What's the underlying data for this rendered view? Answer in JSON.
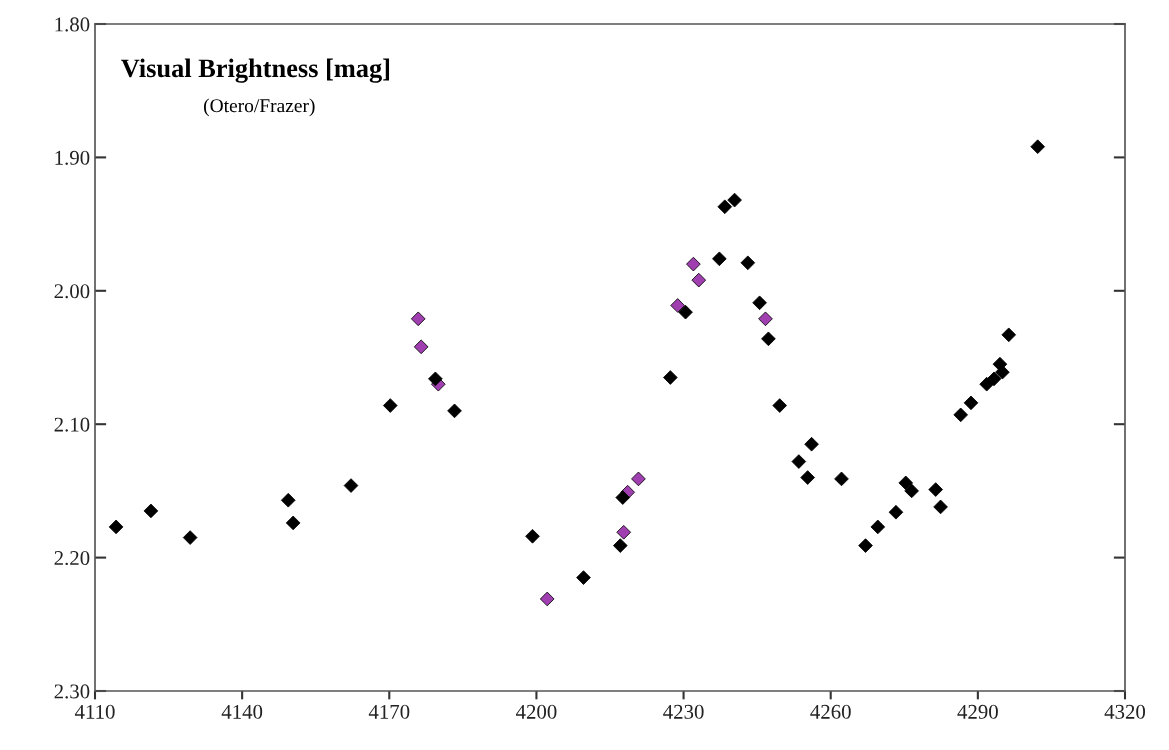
{
  "chart_data": {
    "type": "scatter",
    "title": "Visual Brightness [mag]",
    "subtitle": "(Otero/Frazer)",
    "marker": "diamond",
    "grid": false,
    "legend": false,
    "xlim": [
      4110,
      4320
    ],
    "xticks": [
      4110,
      4140,
      4170,
      4200,
      4230,
      4260,
      4290,
      4320
    ],
    "ylim": [
      2.3,
      1.8
    ],
    "yticks": [
      {
        "value": 1.8,
        "label": "1.80"
      },
      {
        "value": 1.9,
        "label": "1.90"
      },
      {
        "value": 2.0,
        "label": "2.00"
      },
      {
        "value": 2.1,
        "label": "2.10"
      },
      {
        "value": 2.2,
        "label": "2.20"
      },
      {
        "value": 2.3,
        "label": "2.30"
      }
    ],
    "series": [
      {
        "color": "#000000",
        "x": [
          4114.3,
          4121.4,
          4129.4,
          4149.4,
          4150.4,
          4162.2,
          4170.2,
          4179.4,
          4183.3,
          4199.2,
          4209.6,
          4217.1,
          4217.6,
          4227.3,
          4230.4,
          4237.3,
          4238.4,
          4240.4,
          4243.1,
          4245.5,
          4247.3,
          4249.6,
          4253.5,
          4255.3,
          4256.1,
          4262.2,
          4267.1,
          4269.6,
          4273.3,
          4275.3,
          4276.5,
          4281.4,
          4282.4,
          4286.5,
          4288.6,
          4291.8,
          4293.3,
          4295.0,
          4294.5,
          4296.3,
          4302.2
        ],
        "values": [
          2.177,
          2.165,
          2.185,
          2.157,
          2.174,
          2.146,
          2.086,
          2.066,
          2.09,
          2.184,
          2.215,
          2.191,
          2.155,
          2.065,
          2.016,
          1.976,
          1.937,
          1.932,
          1.979,
          2.009,
          2.036,
          2.086,
          2.128,
          2.14,
          2.115,
          2.141,
          2.191,
          2.177,
          2.166,
          2.144,
          2.15,
          2.149,
          2.162,
          2.093,
          2.084,
          2.07,
          2.066,
          2.061,
          2.055,
          2.033,
          1.892
        ]
      },
      {
        "color": "#a040b0",
        "x": [
          4175.9,
          4176.5,
          4180.0,
          4202.2,
          4217.8,
          4218.6,
          4220.8,
          4228.8,
          4232.0,
          4233.1,
          4246.7
        ],
        "values": [
          2.021,
          2.042,
          2.07,
          2.231,
          2.181,
          2.151,
          2.141,
          2.011,
          1.98,
          1.992,
          2.021
        ]
      }
    ]
  }
}
